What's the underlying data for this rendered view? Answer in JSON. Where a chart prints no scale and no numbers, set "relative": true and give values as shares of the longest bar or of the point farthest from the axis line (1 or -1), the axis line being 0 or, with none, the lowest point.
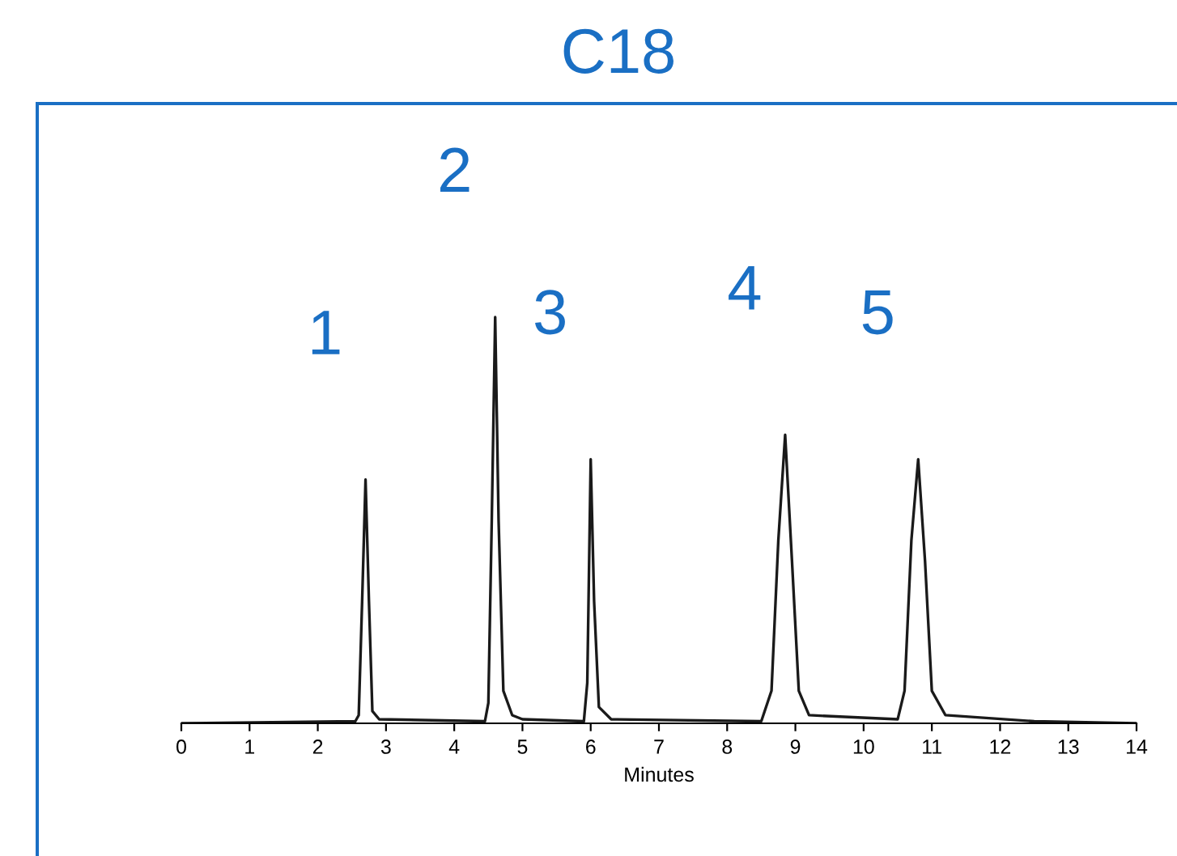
{
  "chart_data": {
    "type": "line",
    "title": "C18",
    "xlabel": "Minutes",
    "relative": true,
    "xlim": [
      0,
      14
    ],
    "xticks": [
      0,
      1,
      2,
      3,
      4,
      5,
      6,
      7,
      8,
      9,
      10,
      11,
      12,
      13,
      14
    ],
    "grid": false,
    "legend": false,
    "marker": "none",
    "line_style": "solid",
    "series": [
      {
        "color": "#1a1a1a",
        "x": [
          0,
          2.55,
          2.6,
          2.65,
          2.7,
          2.75,
          2.8,
          2.9,
          4.45,
          4.5,
          4.55,
          4.6,
          4.65,
          4.72,
          4.85,
          5.0,
          5.9,
          5.95,
          6.0,
          6.05,
          6.12,
          6.3,
          8.5,
          8.65,
          8.75,
          8.85,
          8.95,
          9.05,
          9.2,
          10.5,
          10.6,
          10.7,
          10.8,
          10.9,
          11.0,
          11.2,
          12.5,
          14
        ],
        "values": [
          0,
          0.005,
          0.02,
          0.3,
          0.6,
          0.3,
          0.03,
          0.01,
          0.005,
          0.05,
          0.5,
          1,
          0.5,
          0.08,
          0.02,
          0.01,
          0.005,
          0.1,
          0.65,
          0.3,
          0.04,
          0.01,
          0.005,
          0.08,
          0.45,
          0.71,
          0.4,
          0.08,
          0.02,
          0.01,
          0.08,
          0.45,
          0.65,
          0.4,
          0.08,
          0.02,
          0.005,
          0
        ]
      }
    ],
    "annotations": [
      {
        "text": "1",
        "x": 2.7,
        "y": 0.6
      },
      {
        "text": "2",
        "x": 4.6,
        "y": 1
      },
      {
        "text": "3",
        "x": 6.0,
        "y": 0.65
      },
      {
        "text": "4",
        "x": 8.85,
        "y": 0.71
      },
      {
        "text": "5",
        "x": 10.8,
        "y": 0.65
      }
    ]
  }
}
